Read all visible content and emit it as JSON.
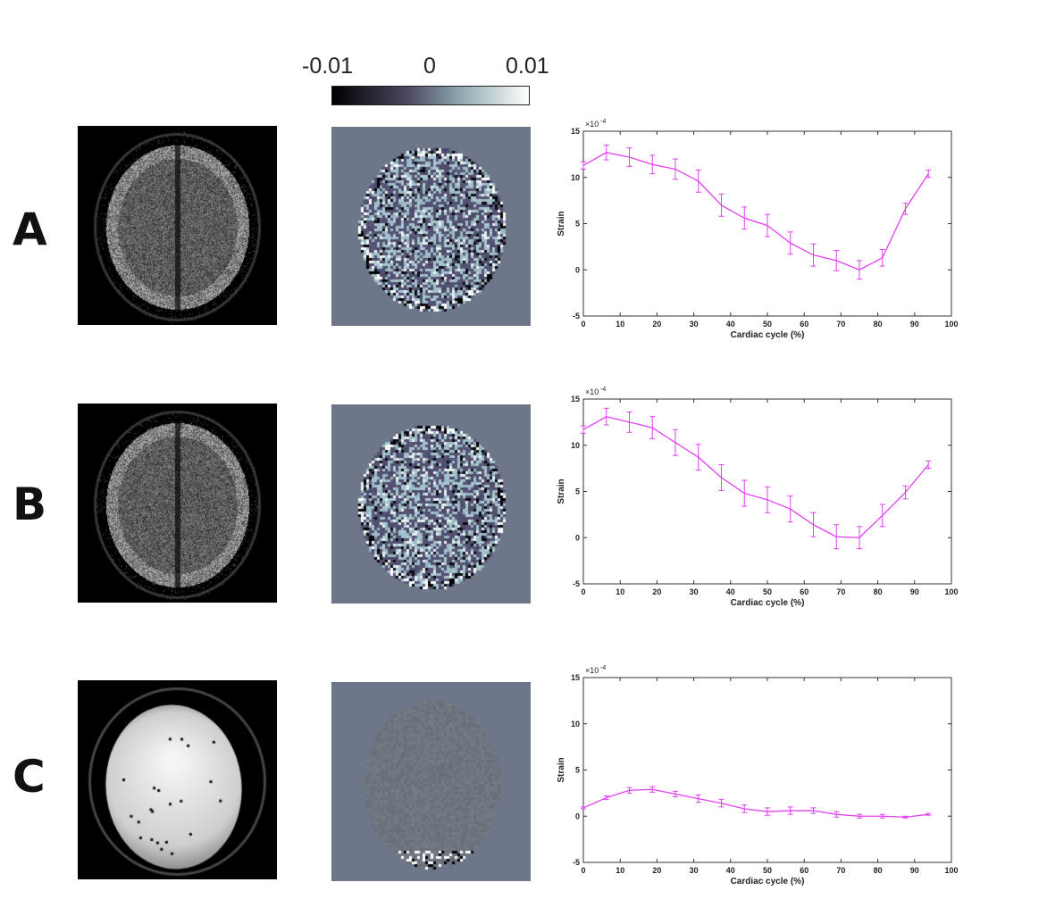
{
  "colorbar": {
    "tick_labels": [
      "-0.01",
      "0",
      "0.01"
    ],
    "colors": [
      "#000000",
      "#4a4760",
      "#8fa8b0",
      "#ffffff"
    ]
  },
  "rows": [
    {
      "label": "A",
      "brain_type": "brain",
      "strain_map_style": "dense"
    },
    {
      "label": "B",
      "brain_type": "brain",
      "strain_map_style": "dense"
    },
    {
      "label": "C",
      "brain_type": "phantom",
      "strain_map_style": "faint"
    }
  ],
  "chart_data": [
    {
      "type": "line",
      "xlabel": "Cardiac cycle (%)",
      "ylabel": "Strain",
      "exponent_label": "×10",
      "exponent_power": "-4",
      "xlim": [
        0,
        100
      ],
      "ylim": [
        -5,
        15
      ],
      "xticks": [
        "0",
        "10",
        "20",
        "30",
        "40",
        "50",
        "60",
        "70",
        "80",
        "90",
        "100"
      ],
      "yticks": [
        "-5",
        "0",
        "5",
        "10",
        "15"
      ],
      "line_color": "#e040f0",
      "x": [
        0,
        6.25,
        12.5,
        18.75,
        25,
        31.25,
        37.5,
        43.75,
        50,
        56.25,
        62.5,
        68.75,
        75,
        81.25,
        87.5,
        93.75
      ],
      "y": [
        11.3,
        12.7,
        12.2,
        11.4,
        10.9,
        9.6,
        7.0,
        5.6,
        4.8,
        2.9,
        1.6,
        1.0,
        0.0,
        1.3,
        6.6,
        10.4
      ],
      "err": [
        0.4,
        0.8,
        1.0,
        1.0,
        1.1,
        1.2,
        1.2,
        1.2,
        1.2,
        1.2,
        1.2,
        1.1,
        1.0,
        0.9,
        0.6,
        0.4
      ]
    },
    {
      "type": "line",
      "xlabel": "Cardiac cycle (%)",
      "ylabel": "Strain",
      "exponent_label": "×10",
      "exponent_power": "-4",
      "xlim": [
        0,
        100
      ],
      "ylim": [
        -5,
        15
      ],
      "xticks": [
        "0",
        "10",
        "20",
        "30",
        "40",
        "50",
        "60",
        "70",
        "80",
        "90",
        "100"
      ],
      "yticks": [
        "-5",
        "0",
        "5",
        "10",
        "15"
      ],
      "line_color": "#e040f0",
      "x": [
        0,
        6.25,
        12.5,
        18.75,
        25,
        31.25,
        37.5,
        43.75,
        50,
        56.25,
        62.5,
        68.75,
        75,
        81.25,
        87.5,
        93.75
      ],
      "y": [
        11.7,
        13.1,
        12.5,
        11.9,
        10.3,
        8.7,
        6.5,
        4.8,
        4.1,
        3.1,
        1.4,
        0.1,
        0.0,
        2.4,
        4.9,
        7.9
      ],
      "err": [
        0.4,
        0.9,
        1.1,
        1.2,
        1.4,
        1.4,
        1.4,
        1.4,
        1.4,
        1.4,
        1.3,
        1.3,
        1.2,
        1.2,
        0.7,
        0.4
      ]
    },
    {
      "type": "line",
      "xlabel": "Cardiac cycle (%)",
      "ylabel": "Strain",
      "exponent_label": "×10",
      "exponent_power": "-4",
      "xlim": [
        0,
        100
      ],
      "ylim": [
        -5,
        15
      ],
      "xticks": [
        "0",
        "10",
        "20",
        "30",
        "40",
        "50",
        "60",
        "70",
        "80",
        "90",
        "100"
      ],
      "yticks": [
        "-5",
        "0",
        "5",
        "10",
        "15"
      ],
      "line_color": "#e040f0",
      "x": [
        0,
        6.25,
        12.5,
        18.75,
        25,
        31.25,
        37.5,
        43.75,
        50,
        56.25,
        62.5,
        68.75,
        75,
        81.25,
        87.5,
        93.75
      ],
      "y": [
        0.9,
        2.0,
        2.8,
        2.9,
        2.4,
        1.9,
        1.4,
        0.8,
        0.5,
        0.6,
        0.6,
        0.2,
        0.0,
        0.0,
        -0.1,
        0.2
      ],
      "err": [
        0.1,
        0.2,
        0.3,
        0.3,
        0.3,
        0.4,
        0.4,
        0.4,
        0.4,
        0.4,
        0.3,
        0.3,
        0.2,
        0.2,
        0.1,
        0.1
      ]
    }
  ]
}
